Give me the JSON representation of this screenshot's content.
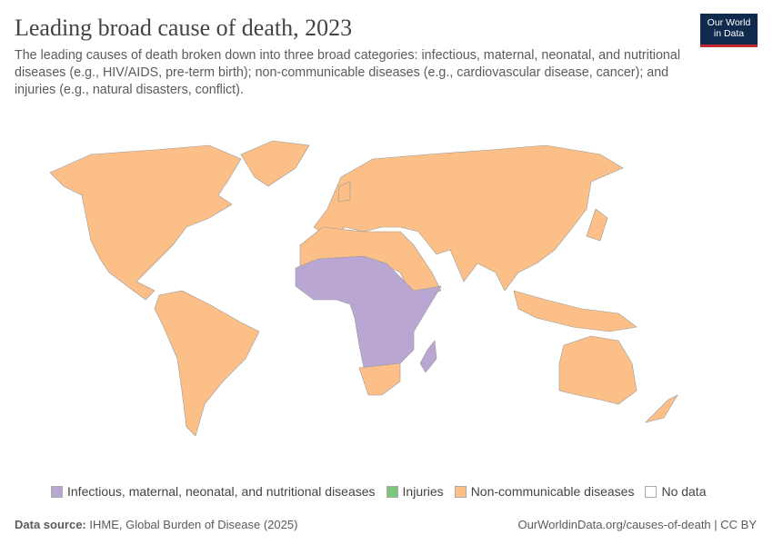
{
  "header": {
    "title": "Leading broad cause of death, 2023",
    "subtitle": "The leading causes of death broken down into three broad categories: infectious, maternal, neonatal, and nutritional diseases (e.g., HIV/AIDS, pre-term birth); non-communicable diseases (e.g., cardiovascular disease, cancer); and injuries (e.g., natural disasters, conflict).",
    "logo": [
      "Our World",
      "in Data"
    ]
  },
  "legend": [
    {
      "label": "Infectious, maternal, neonatal, and nutritional diseases",
      "color": "#b9a6d3"
    },
    {
      "label": "Injuries",
      "color": "#7cc57a"
    },
    {
      "label": "Non-communicable diseases",
      "color": "#fcbf87"
    },
    {
      "label": "No data",
      "color": "#ffffff"
    }
  ],
  "footer": {
    "source_label": "Data source:",
    "source": "IHME, Global Burden of Disease (2025)",
    "url": "OurWorldinData.org/causes-of-death | CC BY"
  }
}
